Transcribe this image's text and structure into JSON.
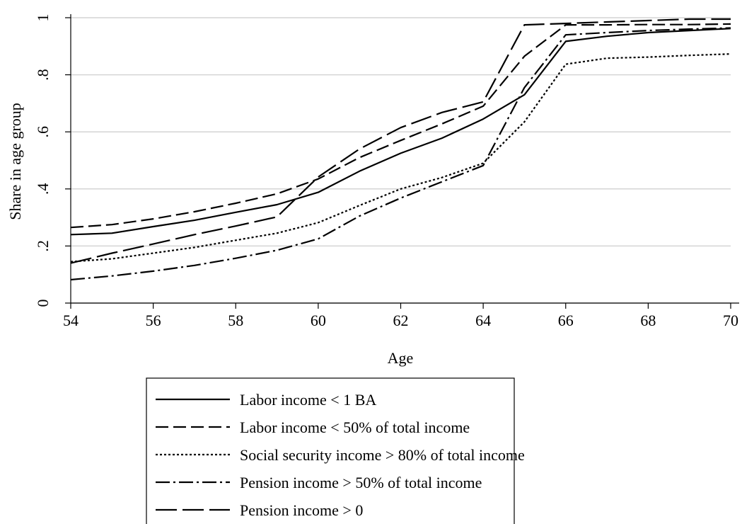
{
  "chart_data": {
    "type": "line",
    "xlabel": "Age",
    "ylabel": "Share in age group",
    "xlim": [
      54,
      70
    ],
    "ylim": [
      0,
      1
    ],
    "x_ticks": [
      "54",
      "56",
      "58",
      "60",
      "62",
      "64",
      "66",
      "68",
      "70"
    ],
    "y_ticks": [
      "0",
      ".2",
      ".4",
      ".6",
      ".8",
      "1"
    ],
    "grid": true,
    "legend_position": "bottom",
    "x": [
      54,
      55,
      56,
      57,
      58,
      59,
      60,
      61,
      62,
      63,
      64,
      65,
      66,
      67,
      68,
      69,
      70
    ],
    "series": [
      {
        "name": "Labor income < 1 BA",
        "style": "solid",
        "values": [
          0.24,
          0.245,
          0.268,
          0.29,
          0.318,
          0.345,
          0.388,
          0.462,
          0.525,
          0.578,
          0.645,
          0.73,
          0.917,
          0.935,
          0.948,
          0.955,
          0.962
        ]
      },
      {
        "name": "Labor income < 50% of total income",
        "style": "dash",
        "values": [
          0.265,
          0.275,
          0.295,
          0.32,
          0.35,
          0.383,
          0.435,
          0.51,
          0.57,
          0.628,
          0.69,
          0.865,
          0.975,
          0.975,
          0.976,
          0.976,
          0.978
        ]
      },
      {
        "name": "Social security income > 80% of total income",
        "style": "dot",
        "values": [
          0.145,
          0.155,
          0.175,
          0.195,
          0.22,
          0.245,
          0.282,
          0.342,
          0.4,
          0.44,
          0.49,
          0.635,
          0.837,
          0.858,
          0.862,
          0.868,
          0.873
        ]
      },
      {
        "name": "Pension income > 50% of total income",
        "style": "dashdot",
        "values": [
          0.082,
          0.095,
          0.112,
          0.132,
          0.157,
          0.185,
          0.225,
          0.305,
          0.368,
          0.425,
          0.482,
          0.755,
          0.94,
          0.948,
          0.955,
          0.96,
          0.964
        ]
      },
      {
        "name": "Pension income > 0",
        "style": "longdash",
        "values": [
          0.14,
          0.175,
          0.207,
          0.24,
          0.27,
          0.302,
          0.442,
          0.54,
          0.615,
          0.668,
          0.705,
          0.975,
          0.98,
          0.985,
          0.99,
          0.995,
          0.995
        ]
      }
    ]
  }
}
